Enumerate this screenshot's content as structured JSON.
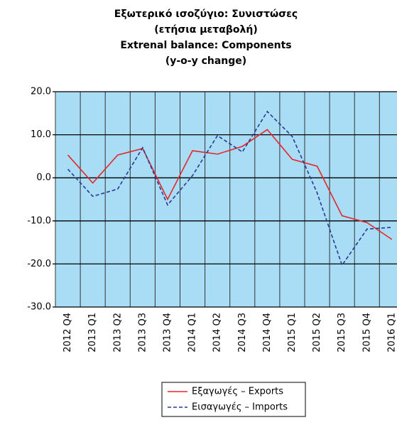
{
  "chart_data": {
    "type": "line",
    "title": [
      "Εξωτερικό ισοζύγιο: Συνιστώσες",
      "(ετήσια μεταβολή)",
      "Extrenal balance: Components",
      "(y-o-y change)"
    ],
    "categories": [
      "2012 Q4",
      "2013 Q1",
      "2013 Q2",
      "2013 Q3",
      "2013 Q4",
      "2014 Q1",
      "2014 Q2",
      "2014 Q3",
      "2014 Q4",
      "2015 Q1",
      "2015 Q2",
      "2015 Q3",
      "2015 Q4",
      "2016 Q1"
    ],
    "series": [
      {
        "name": "Εξαγωγές – Exports",
        "color": "#e8262b",
        "dash": false,
        "values": [
          5.3,
          -1.2,
          5.3,
          6.8,
          -5.0,
          6.3,
          5.5,
          7.3,
          11.2,
          4.3,
          2.7,
          -8.8,
          -10.4,
          -14.3
        ]
      },
      {
        "name": "Εισαγωγές – Imports",
        "color": "#2b3990",
        "dash": true,
        "values": [
          2.0,
          -4.3,
          -2.6,
          7.0,
          -6.3,
          0.5,
          9.8,
          6.0,
          15.4,
          9.6,
          -3.5,
          -20.3,
          -11.9,
          -11.5
        ]
      }
    ],
    "ylim": [
      -30,
      20
    ],
    "yticks": [
      {
        "value": -30,
        "label": "-30.0"
      },
      {
        "value": -20,
        "label": "-20.0"
      },
      {
        "value": -10,
        "label": "-10.0"
      },
      {
        "value": 0,
        "label": "0.0"
      },
      {
        "value": 10,
        "label": "10.0"
      },
      {
        "value": 20,
        "label": "20.0"
      }
    ],
    "grid": true,
    "background": "#a8ddf5",
    "legend": "bottom"
  }
}
